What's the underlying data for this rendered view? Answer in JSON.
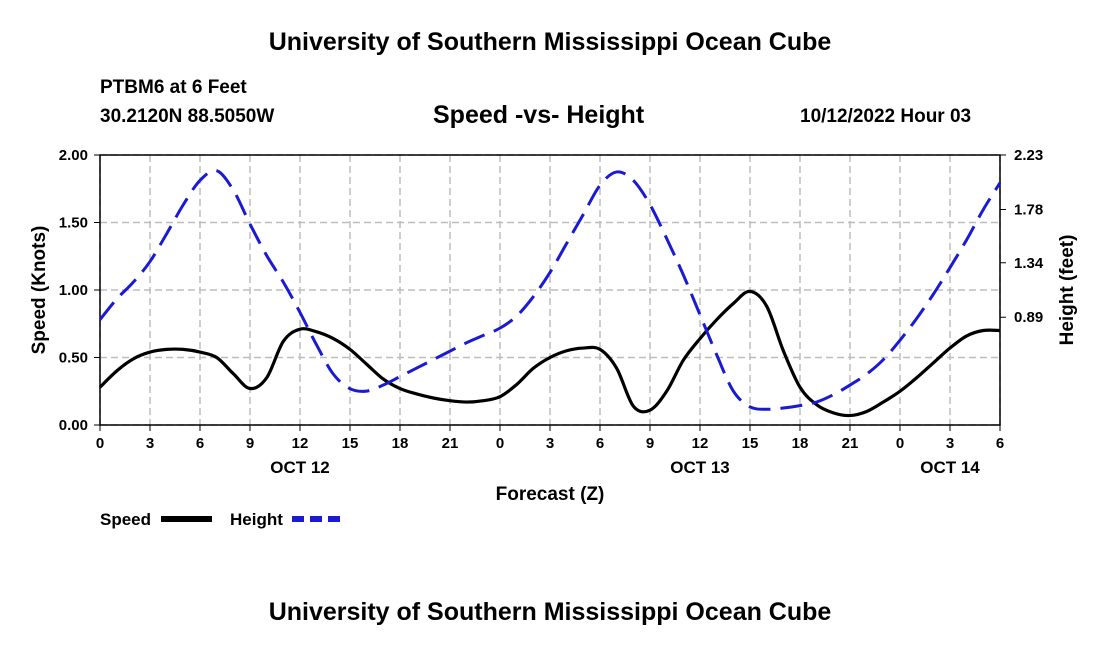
{
  "page": {
    "title_top": "University of Southern Mississippi Ocean Cube",
    "title_bottom": "University of Southern Mississippi Ocean Cube",
    "station": "PTBM6 at 6 Feet",
    "coords": "30.2120N  88.5050W",
    "datetime": "10/12/2022 Hour 03"
  },
  "chart_data": {
    "type": "line",
    "title": "Speed -vs- Height",
    "xlabel": "Forecast (Z)",
    "ylabel": "Speed (Knots)",
    "y2label": "Height (feet)",
    "x_hours": [
      0,
      54
    ],
    "x_tick_labels": [
      "0",
      "3",
      "6",
      "9",
      "12",
      "15",
      "18",
      "21",
      "0",
      "3",
      "6",
      "9",
      "12",
      "15",
      "18",
      "21",
      "0",
      "3",
      "6"
    ],
    "date_labels": [
      {
        "text": "OCT 12",
        "hour": 12
      },
      {
        "text": "OCT 13",
        "hour": 36
      },
      {
        "text": "OCT 14",
        "hour": 51
      }
    ],
    "ylim": [
      0,
      2.0
    ],
    "y_ticks": [
      0,
      0.5,
      1.0,
      1.5,
      2.0
    ],
    "y_tick_labels": [
      "0.00",
      "0.50",
      "1.00",
      "1.50",
      "2.00"
    ],
    "y2lim": [
      0,
      2.23
    ],
    "y2_ticks": [
      0.89,
      1.34,
      1.78,
      2.23
    ],
    "y2_tick_labels": [
      "0.89",
      "1.34",
      "1.78",
      "2.23"
    ],
    "grid": true,
    "legend_position": "bottom-left",
    "series": [
      {
        "name": "Speed",
        "axis": "left",
        "color": "#000000",
        "style": "solid",
        "x": [
          0,
          1,
          2,
          3,
          4,
          5,
          6,
          7,
          8,
          9,
          10,
          11,
          12,
          13,
          14,
          15,
          16,
          17,
          18,
          19,
          20,
          21,
          22,
          23,
          24,
          25,
          26,
          27,
          28,
          29,
          30,
          31,
          32,
          33,
          34,
          35,
          36,
          37,
          38,
          39,
          40,
          41,
          42,
          43,
          44,
          45,
          46,
          47,
          48,
          49,
          50,
          51,
          52,
          53,
          54
        ],
        "values": [
          0.28,
          0.4,
          0.49,
          0.54,
          0.56,
          0.56,
          0.54,
          0.5,
          0.38,
          0.27,
          0.35,
          0.62,
          0.71,
          0.69,
          0.64,
          0.56,
          0.45,
          0.34,
          0.27,
          0.23,
          0.2,
          0.18,
          0.17,
          0.18,
          0.21,
          0.3,
          0.42,
          0.5,
          0.55,
          0.57,
          0.56,
          0.42,
          0.14,
          0.11,
          0.25,
          0.48,
          0.64,
          0.78,
          0.9,
          0.99,
          0.88,
          0.55,
          0.28,
          0.15,
          0.09,
          0.07,
          0.1,
          0.17,
          0.25,
          0.35,
          0.46,
          0.57,
          0.66,
          0.7,
          0.7
        ]
      },
      {
        "name": "Height",
        "axis": "right",
        "color": "#1a1ad4",
        "style": "dashed",
        "x": [
          0,
          1,
          2,
          3,
          4,
          5,
          6,
          7,
          8,
          9,
          10,
          11,
          12,
          13,
          14,
          15,
          16,
          17,
          18,
          19,
          20,
          21,
          22,
          23,
          24,
          25,
          26,
          27,
          28,
          29,
          30,
          31,
          32,
          33,
          34,
          35,
          36,
          37,
          38,
          39,
          40,
          41,
          42,
          43,
          44,
          45,
          46,
          47,
          48,
          49,
          50,
          51,
          52,
          53,
          54
        ],
        "values": [
          0.87,
          1.04,
          1.18,
          1.35,
          1.58,
          1.82,
          2.02,
          2.1,
          1.94,
          1.66,
          1.4,
          1.18,
          0.93,
          0.66,
          0.42,
          0.3,
          0.28,
          0.33,
          0.4,
          0.47,
          0.54,
          0.61,
          0.68,
          0.74,
          0.8,
          0.9,
          1.06,
          1.26,
          1.5,
          1.74,
          1.98,
          2.09,
          2.02,
          1.82,
          1.54,
          1.24,
          0.91,
          0.58,
          0.28,
          0.15,
          0.13,
          0.14,
          0.16,
          0.19,
          0.25,
          0.33,
          0.42,
          0.54,
          0.7,
          0.88,
          1.08,
          1.3,
          1.53,
          1.78,
          2.0
        ]
      }
    ]
  }
}
